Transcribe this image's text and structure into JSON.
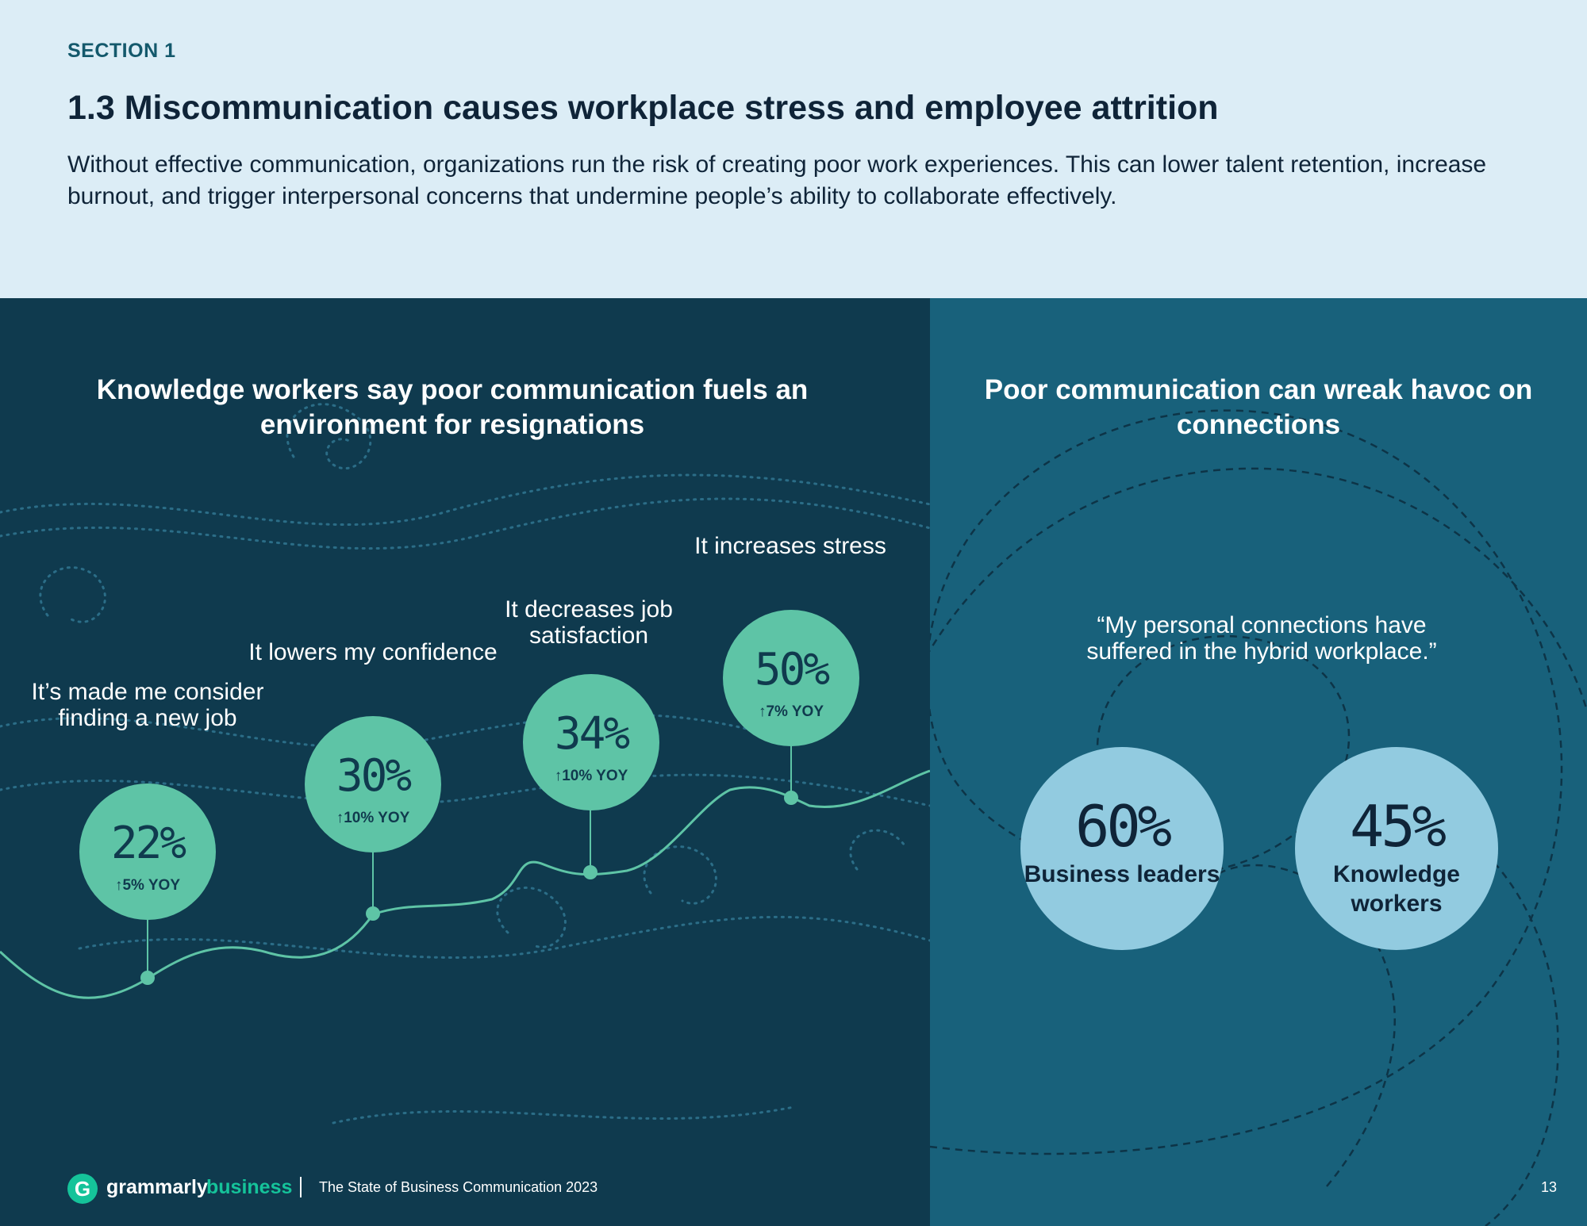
{
  "header": {
    "section": "SECTION 1",
    "title": "1.3 Miscommunication causes workplace stress and employee attrition",
    "lead": "Without effective communication, organizations run the risk of creating poor work experiences. This can lower talent retention, increase burnout, and trigger interpersonal concerns that undermine people’s ability to collaborate effectively."
  },
  "left_panel": {
    "heading": "Knowledge workers say poor communication fuels an environment for resignations",
    "stats": [
      {
        "label": "It’s made me consider finding a new job",
        "value": "22%",
        "yoy": "↑5% YOY"
      },
      {
        "label": "It lowers my confidence",
        "value": "30%",
        "yoy": "↑10% YOY"
      },
      {
        "label": "It decreases job satisfaction",
        "value": "34%",
        "yoy": "↑10% YOY"
      },
      {
        "label": "It increases stress",
        "value": "50%",
        "yoy": "↑7% YOY"
      }
    ]
  },
  "right_panel": {
    "heading": "Poor communication can wreak havoc on connections",
    "quote": "“My personal connections have suffered in the hybrid workplace.”",
    "stats": [
      {
        "value": "60%",
        "who": "Business leaders"
      },
      {
        "value": "45%",
        "who": "Knowledge workers"
      }
    ]
  },
  "footer": {
    "logo_glyph": "G",
    "brand_main": "grammarly",
    "brand_sub": "business",
    "report": "The State of Business Communication 2023",
    "page": "13"
  },
  "colors": {
    "bubble": "#5ec4a6",
    "circle": "#92cbe0",
    "left_bg": "#0f3a4e",
    "right_bg": "#18617b",
    "brand_green": "#15c39a"
  }
}
